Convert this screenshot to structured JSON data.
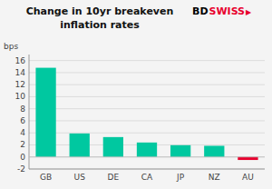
{
  "chart_data": {
    "type": "bar",
    "title": "Change in 10yr breakeven",
    "subtitle": "inflation rates",
    "ylabel": "bps",
    "categories": [
      "GB",
      "US",
      "DE",
      "CA",
      "JP",
      "NZ",
      "AU"
    ],
    "values": [
      14.8,
      3.9,
      3.3,
      2.4,
      1.95,
      1.85,
      -0.5
    ],
    "colors": [
      "#00c8a0",
      "#00c8a0",
      "#00c8a0",
      "#00c8a0",
      "#00c8a0",
      "#00c8a0",
      "#e8002d"
    ],
    "ylim": [
      -2,
      17
    ],
    "yticks": [
      -2,
      0,
      2,
      4,
      6,
      8,
      10,
      12,
      14,
      16
    ],
    "grid": true,
    "annotations": [
      {
        "text": "BD",
        "color": "#000000"
      },
      {
        "text": "SWISS",
        "color": "#e8002d"
      },
      {
        "text": "▶",
        "color": "#e8002d"
      }
    ]
  }
}
